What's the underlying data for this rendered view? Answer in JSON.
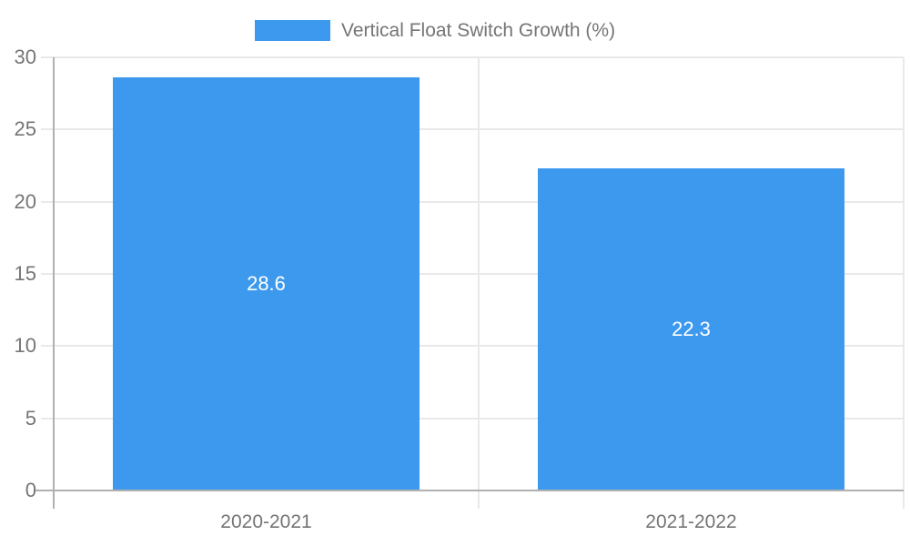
{
  "chart_data": {
    "type": "bar",
    "legend": "Vertical Float Switch Growth (%)",
    "legend_position": "top",
    "categories": [
      "2020-2021",
      "2021-2022"
    ],
    "values": [
      28.6,
      22.3
    ],
    "value_labels": [
      "28.6",
      "22.3"
    ],
    "ylim": [
      0,
      30
    ],
    "yticks": [
      0,
      5,
      10,
      15,
      20,
      25,
      30
    ],
    "grid": true,
    "bar_color": "#3d99ee",
    "value_label_color": "#ffffff",
    "axis_text_color": "#757575",
    "gridline_color": "#e9e9e9",
    "axis_line_color": "#b0b0b0",
    "background_color": "#ffffff"
  }
}
